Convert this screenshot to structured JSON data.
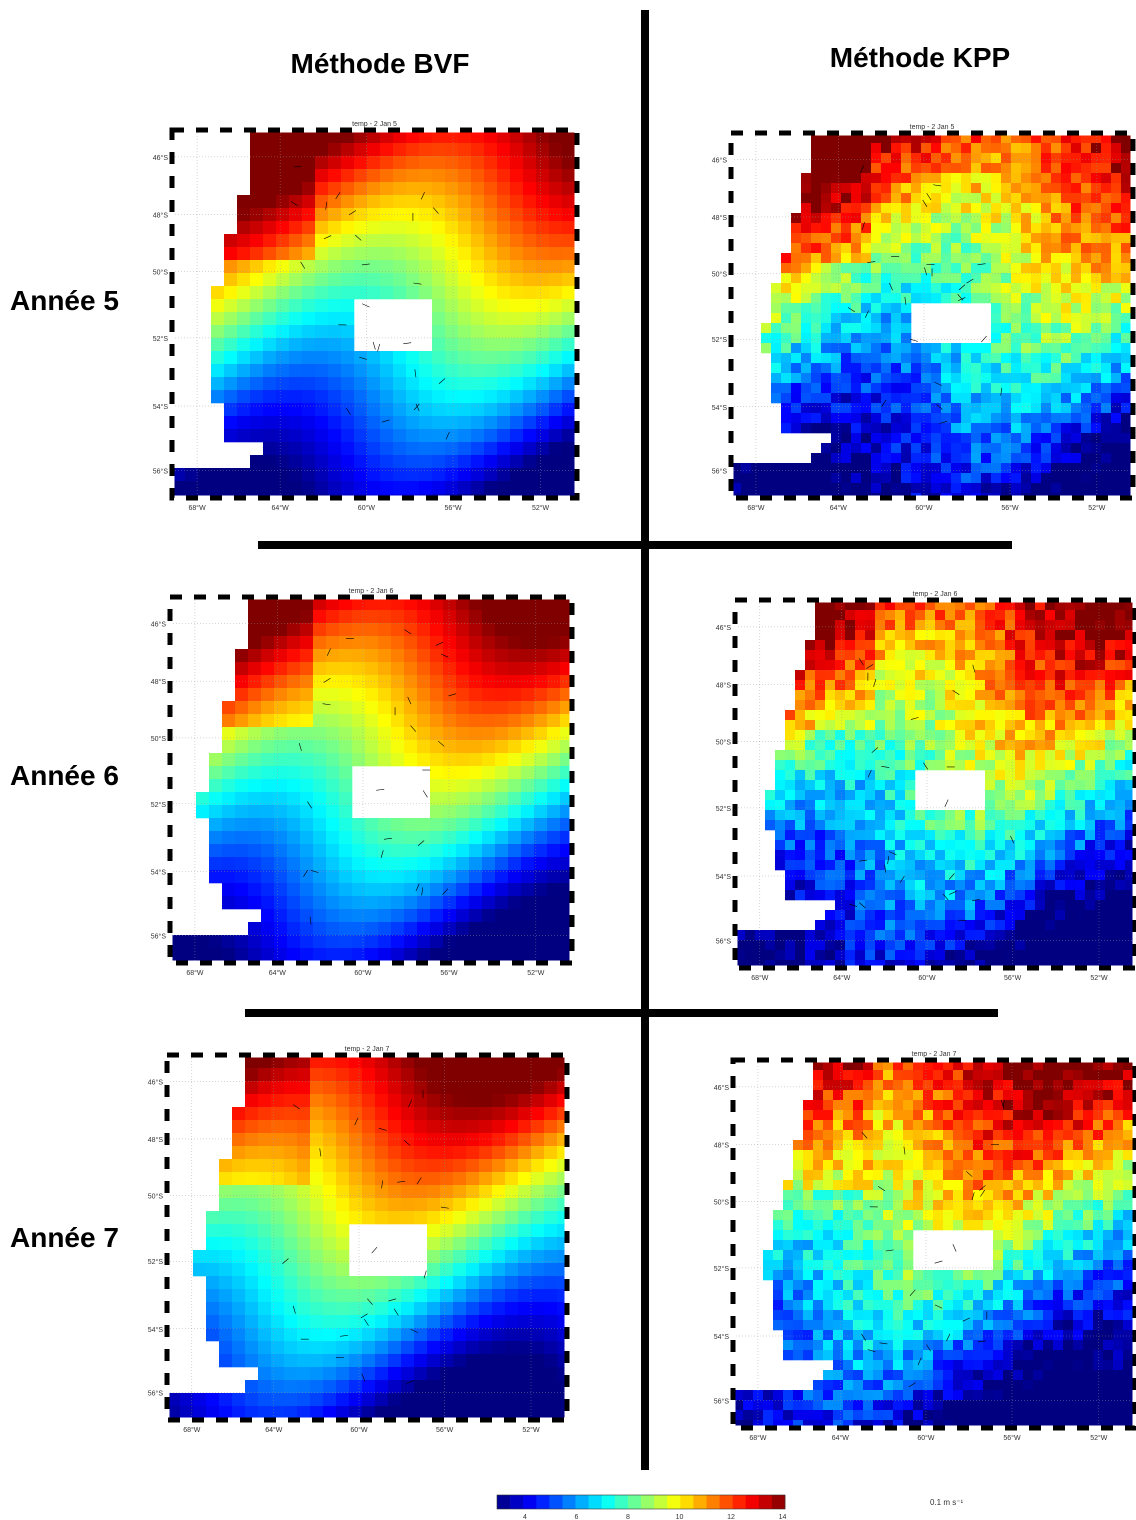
{
  "headers": [
    "Méthode BVF",
    "Méthode KPP"
  ],
  "rows": [
    {
      "label": "Année 5",
      "panels": [
        {
          "title": "temp - 2 Jan 5"
        },
        {
          "title": "temp - 2 Jan 5"
        }
      ]
    },
    {
      "label": "Année 6",
      "panels": [
        {
          "title": "temp - 2 Jan 6"
        },
        {
          "title": "temp - 2 Jan 6"
        }
      ]
    },
    {
      "label": "Année 7",
      "panels": [
        {
          "title": "temp - 2 Jan 7"
        },
        {
          "title": "temp - 2 Jan 7"
        }
      ]
    }
  ],
  "axes": {
    "lat_labels": [
      "46°S",
      "48°S",
      "50°S",
      "52°S",
      "54°S",
      "56°S"
    ],
    "lon_labels": [
      "68°W",
      "64°W",
      "60°W",
      "56°W",
      "52°W"
    ]
  },
  "colorbar": {
    "ticks": [
      4,
      6,
      8,
      10,
      12,
      14
    ]
  },
  "vector_scale": "0.1 m s⁻¹"
}
